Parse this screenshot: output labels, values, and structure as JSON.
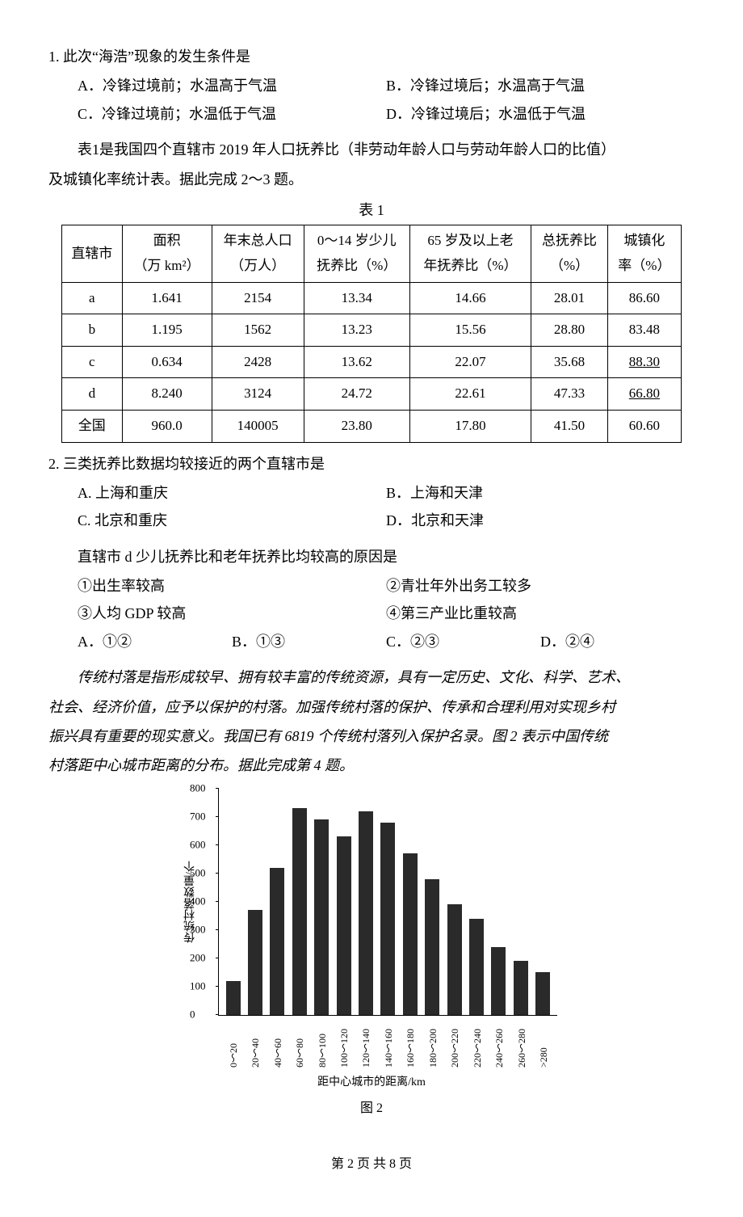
{
  "q1": {
    "num": "1.",
    "stem": "此次“海浩”现象的发生条件是",
    "options": {
      "A": "A．冷锋过境前；水温高于气温",
      "B": "B．冷锋过境后；水温高于气温",
      "C": "C．冷锋过境前；水温低于气温",
      "D": "D．冷锋过境后；水温低于气温"
    }
  },
  "intro2": {
    "line1": "表1是我国四个直辖市 2019 年人口抚养比（非劳动年龄人口与劳动年龄人口的比值）",
    "line2": "及城镇化率统计表。据此完成 2～3 题。"
  },
  "table1": {
    "caption": "表 1",
    "headers": [
      "直辖市",
      "面积\n（万 km²）",
      "年末总人口\n（万人）",
      "0～14 岁少儿\n抚养比（%）",
      "65 岁及以上老\n年抚养比（%）",
      "总抚养比\n（%）",
      "城镇化\n率（%）"
    ],
    "rows": [
      [
        "a",
        "1.641",
        "2154",
        "13.34",
        "14.66",
        "28.01",
        "86.60"
      ],
      [
        "b",
        "1.195",
        "1562",
        "13.23",
        "15.56",
        "28.80",
        "83.48"
      ],
      [
        "c",
        "0.634",
        "2428",
        "13.62",
        "22.07",
        "35.68",
        "88.30"
      ],
      [
        "d",
        "8.240",
        "3124",
        "24.72",
        "22.61",
        "47.33",
        "66.80"
      ],
      [
        "全国",
        "960.0",
        "140005",
        "23.80",
        "17.80",
        "41.50",
        "60.60"
      ]
    ],
    "underline_cells": [
      [
        2,
        6
      ],
      [
        3,
        6
      ]
    ]
  },
  "q2": {
    "num": "2.",
    "stem": "三类抚养比数据均较接近的两个直辖市是",
    "options": {
      "A": "A. 上海和重庆",
      "B": "B．上海和天津",
      "C": "C. 北京和重庆",
      "D": "D．北京和天津"
    }
  },
  "q3": {
    "stem": "直辖市 d 少儿抚养比和老年抚养比均较高的原因是",
    "items": {
      "i1": "①出生率较高",
      "i2": "②青壮年外出务工较多",
      "i3": "③人均 GDP 较高",
      "i4": "④第三产业比重较高"
    },
    "options": {
      "A": "A．①②",
      "B": "B．①③",
      "C": "C．②③",
      "D": "D．②④"
    }
  },
  "intro4": {
    "p1": "传统村落是指形成较早、拥有较丰富的传统资源，具有一定历史、文化、科学、艺术、",
    "p2": "社会、经济价值，应予以保护的村落。加强传统村落的保护、传承和合理利用对实现乡村",
    "p3": "振兴具有重要的现实意义。我国已有 6819 个传统村落列入保护名录。图 2 表示中国传统",
    "p4": "村落距中心城市距离的分布。据此完成第 4 题。"
  },
  "chart": {
    "type": "bar",
    "y_label": "传统村落数量/个",
    "y_max": 800,
    "y_ticks": [
      0,
      100,
      200,
      300,
      400,
      500,
      600,
      700,
      800
    ],
    "categories": [
      "0～20",
      "20～40",
      "40～60",
      "60～80",
      "80～100",
      "100～120",
      "120～140",
      "140～160",
      "160～180",
      "180～200",
      "200～220",
      "220～240",
      "240～260",
      "260～280",
      ">280"
    ],
    "values": [
      120,
      370,
      520,
      730,
      690,
      630,
      720,
      680,
      570,
      480,
      390,
      340,
      240,
      190,
      150
    ],
    "bar_color": "#2a2a2a",
    "x_axis_label": "距中心城市的距离/km",
    "caption": "图 2"
  },
  "footer": "第 2 页 共 8 页"
}
